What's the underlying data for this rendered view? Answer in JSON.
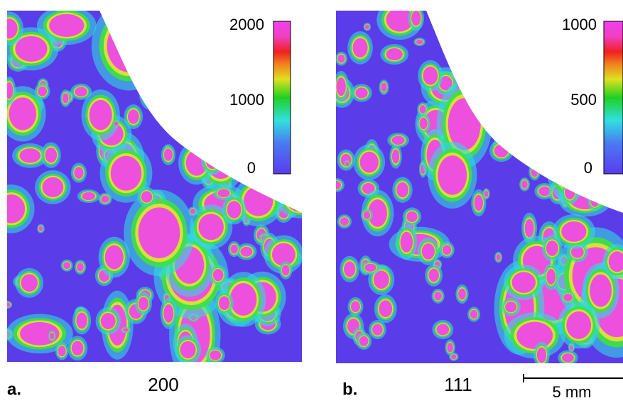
{
  "panels": [
    {
      "letter": "a.",
      "label": "200",
      "colorbar_ticks": [
        "2000",
        "1000",
        "0"
      ]
    },
    {
      "letter": "b.",
      "label": "111",
      "colorbar_ticks": [
        "1000",
        "500",
        "0"
      ]
    }
  ],
  "scale_bar": "5 mm"
}
